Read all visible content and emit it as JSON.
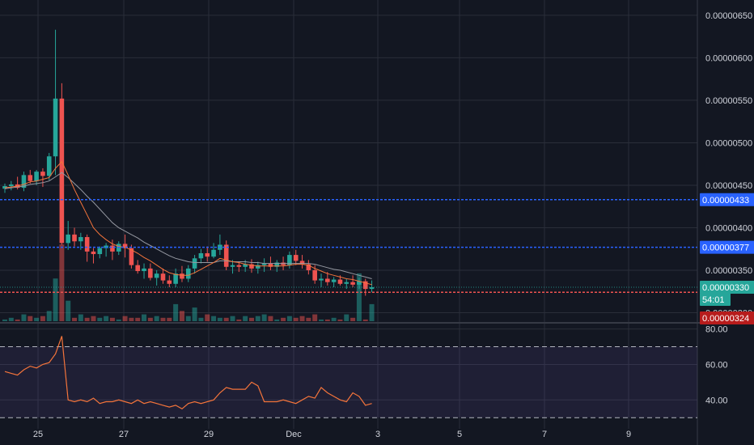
{
  "colors": {
    "background": "#131722",
    "grid": "#2a2e39",
    "up": "#26a69a",
    "down": "#ef5350",
    "blue_line": "#2962ff",
    "red_line": "#ef5350",
    "last_price": "#26a69a",
    "ma_fast": "#f4743b",
    "ma_slow": "#9598a1",
    "rsi_line": "#f4743b",
    "rsi_band": "#7e57c2"
  },
  "price_axis": {
    "ticks": [
      "0.00000650",
      "0.00000600",
      "0.00000550",
      "0.00000500",
      "0.00000450",
      "0.00000400",
      "0.00000350",
      "0.00000300"
    ],
    "tick_values": [
      650,
      600,
      550,
      500,
      450,
      400,
      350,
      300
    ],
    "range": [
      290,
      668
    ]
  },
  "time_axis": {
    "labels": [
      "25",
      "27",
      "29",
      "Dec",
      "3",
      "5",
      "7",
      "9"
    ]
  },
  "price_tags": [
    {
      "label": "0.00000433",
      "value": 433,
      "color": "#2962ff"
    },
    {
      "label": "0.00000377",
      "value": 377,
      "color": "#2962ff"
    },
    {
      "label": "0.00000330",
      "value": 330,
      "color": "#26a69a"
    },
    {
      "label": "54:01",
      "value": 317,
      "color": "#26a69a"
    },
    {
      "label": "0.00000324",
      "value": 324,
      "color": "#b71c1c"
    }
  ],
  "horizontal_lines": [
    {
      "value": 433,
      "color": "#2962ff"
    },
    {
      "value": 377,
      "color": "#2962ff"
    },
    {
      "value": 324,
      "color": "#ef5350"
    }
  ],
  "rsi_axis": {
    "ticks": [
      "80.00",
      "60.00",
      "40.00"
    ],
    "tick_values": [
      80,
      60,
      40
    ],
    "range": [
      26,
      83
    ],
    "band": [
      30,
      70
    ]
  },
  "chart_data": {
    "type": "candlestick",
    "candles": [
      [
        446,
        452,
        441,
        449
      ],
      [
        449,
        455,
        444,
        451
      ],
      [
        451,
        460,
        445,
        447
      ],
      [
        447,
        466,
        443,
        462
      ],
      [
        462,
        468,
        452,
        455
      ],
      [
        455,
        468,
        450,
        466
      ],
      [
        466,
        470,
        448,
        461
      ],
      [
        461,
        488,
        456,
        484
      ],
      [
        484,
        633,
        462,
        552
      ],
      [
        552,
        570,
        380,
        382
      ],
      [
        382,
        408,
        374,
        392
      ],
      [
        392,
        400,
        378,
        384
      ],
      [
        384,
        394,
        374,
        389
      ],
      [
        389,
        392,
        360,
        372
      ],
      [
        372,
        376,
        358,
        369
      ],
      [
        369,
        378,
        364,
        376
      ],
      [
        376,
        382,
        366,
        379
      ],
      [
        379,
        386,
        362,
        372
      ],
      [
        372,
        384,
        368,
        381
      ],
      [
        381,
        392,
        365,
        376
      ],
      [
        376,
        380,
        352,
        356
      ],
      [
        356,
        362,
        346,
        349
      ],
      [
        349,
        358,
        340,
        352
      ],
      [
        352,
        358,
        338,
        341
      ],
      [
        341,
        350,
        332,
        346
      ],
      [
        346,
        352,
        334,
        338
      ],
      [
        338,
        344,
        330,
        334
      ],
      [
        334,
        352,
        330,
        346
      ],
      [
        346,
        355,
        336,
        340
      ],
      [
        340,
        356,
        336,
        352
      ],
      [
        352,
        368,
        346,
        364
      ],
      [
        364,
        375,
        358,
        370
      ],
      [
        370,
        378,
        360,
        366
      ],
      [
        366,
        382,
        364,
        374
      ],
      [
        374,
        392,
        368,
        380
      ],
      [
        380,
        385,
        350,
        354
      ],
      [
        354,
        362,
        346,
        356
      ],
      [
        356,
        360,
        348,
        354
      ],
      [
        354,
        362,
        348,
        357
      ],
      [
        357,
        363,
        347,
        352
      ],
      [
        352,
        360,
        346,
        356
      ],
      [
        356,
        364,
        348,
        358
      ],
      [
        358,
        366,
        350,
        354
      ],
      [
        354,
        362,
        348,
        359
      ],
      [
        359,
        366,
        350,
        356
      ],
      [
        356,
        372,
        352,
        368
      ],
      [
        368,
        374,
        356,
        361
      ],
      [
        361,
        368,
        352,
        357
      ],
      [
        357,
        362,
        345,
        350
      ],
      [
        350,
        356,
        334,
        338
      ],
      [
        338,
        346,
        330,
        340
      ],
      [
        340,
        348,
        332,
        336
      ],
      [
        336,
        342,
        330,
        339
      ],
      [
        339,
        344,
        332,
        334
      ],
      [
        334,
        340,
        328,
        336
      ],
      [
        336,
        344,
        330,
        333
      ],
      [
        333,
        341,
        328,
        337
      ],
      [
        337,
        340,
        320,
        328
      ],
      [
        328,
        338,
        324,
        330
      ]
    ],
    "volume": [
      1,
      2,
      1,
      4,
      3,
      2,
      3,
      6,
      25,
      45,
      12,
      2,
      4,
      2,
      3,
      2,
      3,
      2,
      1,
      3,
      2,
      2,
      4,
      2,
      3,
      2,
      2,
      10,
      6,
      3,
      8,
      2,
      4,
      3,
      2,
      2,
      3,
      1,
      3,
      2,
      3,
      4,
      3,
      1,
      2,
      3,
      2,
      3,
      2,
      4,
      1,
      1,
      2,
      1,
      4,
      2,
      28,
      1,
      10
    ],
    "ma_fast": [
      447,
      448,
      449,
      451,
      454,
      455,
      457,
      459,
      470,
      478,
      462,
      445,
      430,
      415,
      400,
      392,
      386,
      381,
      378,
      377,
      374,
      370,
      365,
      361,
      356,
      351,
      347,
      345,
      344,
      344,
      347,
      351,
      355,
      359,
      364,
      362,
      360,
      359,
      357,
      356,
      355,
      355,
      355,
      355,
      355,
      356,
      357,
      357,
      356,
      352,
      349,
      346,
      344,
      342,
      340,
      339,
      337,
      335,
      333
    ],
    "ma_slow": [
      446,
      447,
      448,
      449,
      451,
      452,
      453,
      455,
      460,
      465,
      459,
      452,
      445,
      437,
      430,
      422,
      414,
      406,
      400,
      396,
      392,
      388,
      383,
      379,
      375,
      371,
      367,
      364,
      362,
      360,
      359,
      359,
      359,
      359,
      361,
      361,
      360,
      360,
      360,
      359,
      359,
      358,
      358,
      358,
      358,
      358,
      358,
      358,
      358,
      357,
      355,
      353,
      351,
      350,
      348,
      346,
      344,
      342,
      340
    ],
    "rsi": [
      56,
      55,
      54,
      57,
      59,
      58,
      60,
      61,
      66,
      76,
      40,
      39,
      40,
      39,
      41,
      38,
      39,
      39,
      40,
      39,
      38,
      40,
      38,
      39,
      38,
      37,
      36,
      37,
      35,
      38,
      39,
      38,
      39,
      40,
      44,
      47,
      46,
      46,
      46,
      50,
      48,
      39,
      39,
      39,
      40,
      39,
      38,
      40,
      42,
      41,
      47,
      44,
      42,
      40,
      39,
      44,
      42,
      37,
      38
    ]
  }
}
